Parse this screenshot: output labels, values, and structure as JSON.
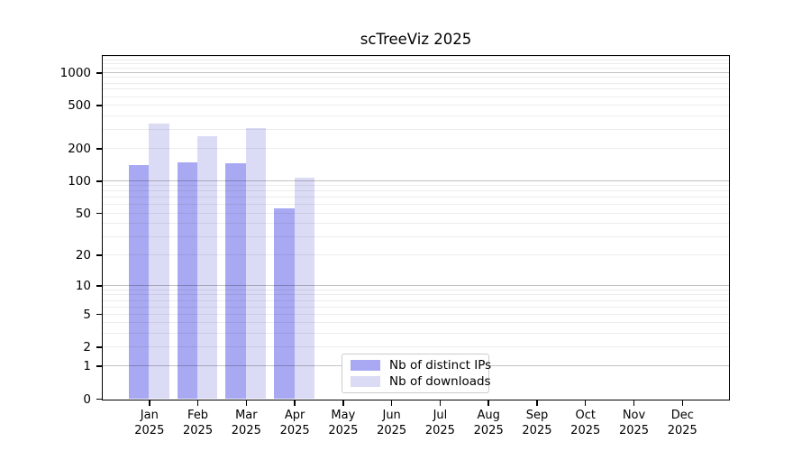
{
  "chart_data": {
    "type": "bar",
    "title": "scTreeViz 2025",
    "categories": [
      "Jan",
      "Feb",
      "Mar",
      "Apr",
      "May",
      "Jun",
      "Jul",
      "Aug",
      "Sep",
      "Oct",
      "Nov",
      "Dec"
    ],
    "x_year": "2025",
    "series": [
      {
        "name": "Nb of distinct IPs",
        "color": "#a9a9f3",
        "values": [
          140,
          147,
          146,
          55,
          0,
          0,
          0,
          0,
          0,
          0,
          0,
          0
        ]
      },
      {
        "name": "Nb of downloads",
        "color": "#dbdbf6",
        "values": [
          340,
          257,
          310,
          106,
          0,
          0,
          0,
          0,
          0,
          0,
          0,
          0
        ]
      }
    ],
    "y_scale": "log1p",
    "y_ticks": [
      0,
      1,
      2,
      5,
      10,
      20,
      50,
      100,
      200,
      500,
      1000
    ],
    "y_max": 1420,
    "grid_major": [
      1,
      10,
      100,
      1000
    ],
    "grid_minor": [
      2,
      3,
      4,
      5,
      6,
      7,
      8,
      9,
      20,
      30,
      40,
      50,
      60,
      70,
      80,
      90,
      200,
      300,
      400,
      500,
      600,
      700,
      800,
      900,
      1100,
      1200,
      1300,
      1400
    ],
    "legend_position": "bottom-center",
    "axis_color": "#000000",
    "background_color": "#ffffff"
  }
}
